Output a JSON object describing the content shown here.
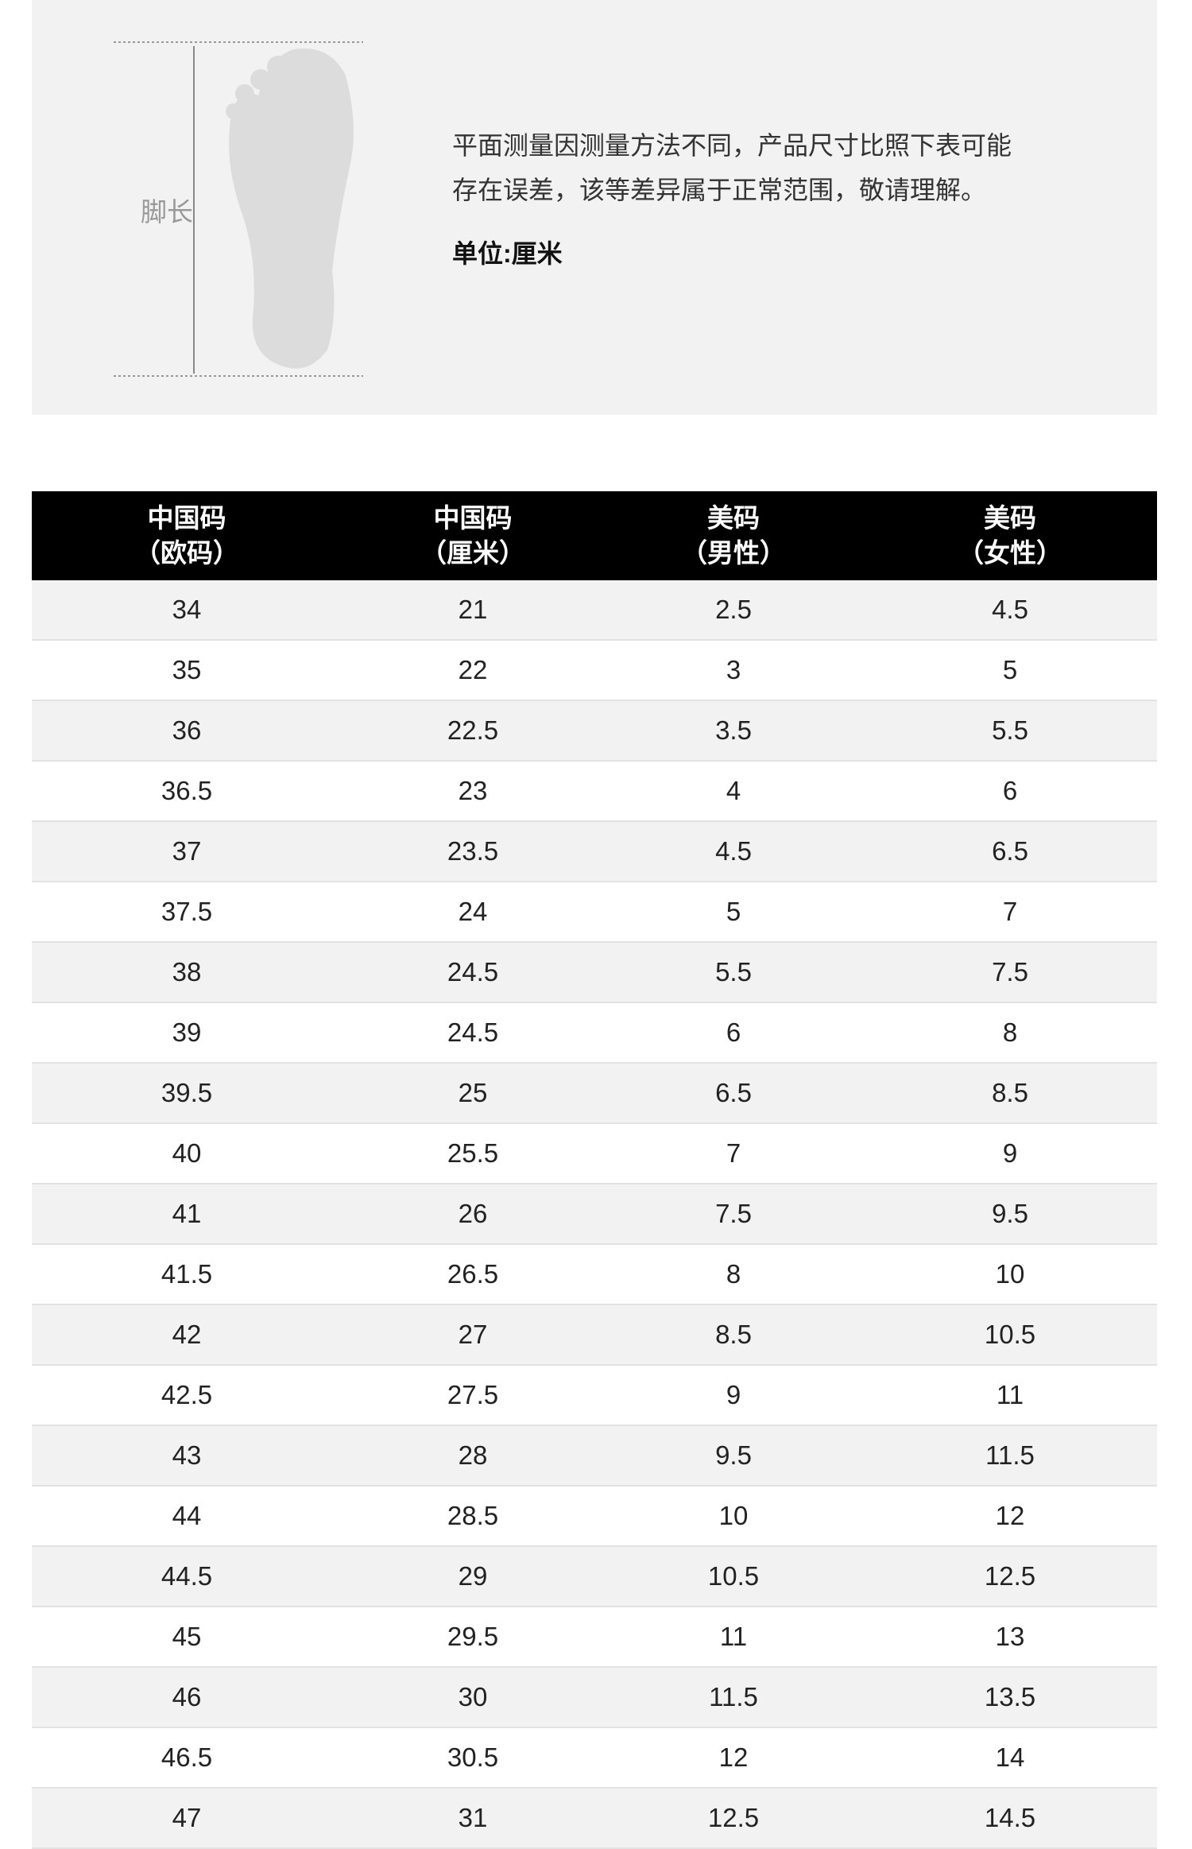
{
  "measure": {
    "label": "脚长",
    "note_lines": [
      "平面测量因测量方法不同，产品尺寸比照下表可能",
      "存在误差，该等差异属于正常范围，敬请理解。"
    ],
    "unit": "单位:厘米"
  },
  "table": {
    "header": [
      [
        "中国码",
        "（欧码）"
      ],
      [
        "中国码",
        "（厘米）"
      ],
      [
        "美码",
        "（男性）"
      ],
      [
        "美码",
        "（女性）"
      ]
    ],
    "rows": [
      [
        "34",
        "21",
        "2.5",
        "4.5"
      ],
      [
        "35",
        "22",
        "3",
        "5"
      ],
      [
        "36",
        "22.5",
        "3.5",
        "5.5"
      ],
      [
        "36.5",
        "23",
        "4",
        "6"
      ],
      [
        "37",
        "23.5",
        "4.5",
        "6.5"
      ],
      [
        "37.5",
        "24",
        "5",
        "7"
      ],
      [
        "38",
        "24.5",
        "5.5",
        "7.5"
      ],
      [
        "39",
        "24.5",
        "6",
        "8"
      ],
      [
        "39.5",
        "25",
        "6.5",
        "8.5"
      ],
      [
        "40",
        "25.5",
        "7",
        "9"
      ],
      [
        "41",
        "26",
        "7.5",
        "9.5"
      ],
      [
        "41.5",
        "26.5",
        "8",
        "10"
      ],
      [
        "42",
        "27",
        "8.5",
        "10.5"
      ],
      [
        "42.5",
        "27.5",
        "9",
        "11"
      ],
      [
        "43",
        "28",
        "9.5",
        "11.5"
      ],
      [
        "44",
        "28.5",
        "10",
        "12"
      ],
      [
        "44.5",
        "29",
        "10.5",
        "12.5"
      ],
      [
        "45",
        "29.5",
        "11",
        "13"
      ],
      [
        "46",
        "30",
        "11.5",
        "13.5"
      ],
      [
        "46.5",
        "30.5",
        "12",
        "14"
      ],
      [
        "47",
        "31",
        "12.5",
        "14.5"
      ]
    ]
  }
}
